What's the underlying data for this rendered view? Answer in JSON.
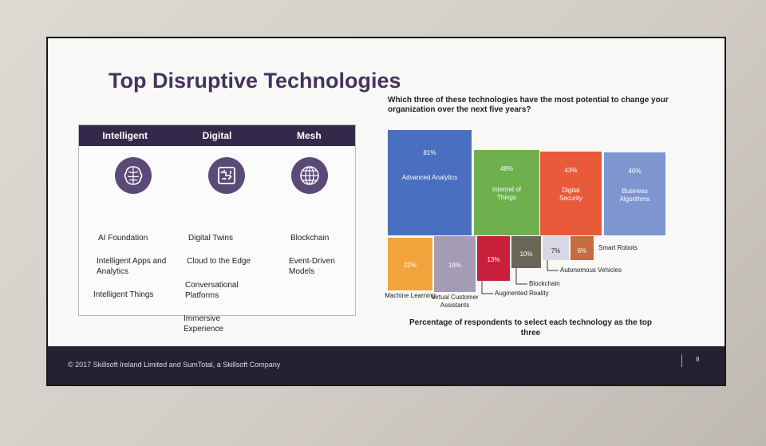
{
  "slide": {
    "title": "Top Disruptive Technologies",
    "question": "Which three of these technologies have the most potential to change your organization over the next five years?",
    "caption": "Percentage of respondents to select each technology as the top three",
    "footer": "© 2017 Skillsoft Ireland Limited and SumTotal, a Skillsoft Company",
    "page_number": "8"
  },
  "panel": {
    "columns": [
      {
        "header": "Intelligent",
        "icon": "brain-icon",
        "items": [
          "AI Foundation",
          "Intelligent Apps and Analytics",
          "Intelligent Things"
        ]
      },
      {
        "header": "Digital",
        "icon": "digital-twin-icon",
        "items": [
          "Digital Twins",
          "Cloud to the Edge",
          "Conversational Platforms",
          "Immersive Experience"
        ]
      },
      {
        "header": "Mesh",
        "icon": "globe-mesh-icon",
        "items": [
          "Blockchain",
          "Event-Driven Models"
        ]
      }
    ]
  },
  "chart_data": {
    "type": "bar",
    "title": "Which three of these technologies have the most potential to change your organization over the next five years?",
    "xlabel": "Percentage of respondents to select each technology as the top three",
    "ylabel": "",
    "categories": [
      "Advanced Analytics",
      "Internet of Things",
      "Digital Security",
      "Business Algorithms",
      "Machine Learning",
      "Virtual Customer Assistants",
      "Augmented Reality",
      "Blockchain",
      "Autonomous Vehicles",
      "Smart Robots"
    ],
    "values": [
      81,
      48,
      43,
      40,
      22,
      19,
      13,
      10,
      7,
      6
    ],
    "labels": [
      "81%",
      "48%",
      "43%",
      "40%",
      "22%",
      "19%",
      "13%",
      "10%",
      "7%",
      "6%"
    ],
    "colors": [
      "#4a6fc0",
      "#6eb04e",
      "#e85a3a",
      "#7d96d0",
      "#f2a43c",
      "#a49bb4",
      "#c8203a",
      "#6b6558",
      "#d7d7e6",
      "#c66c40"
    ]
  }
}
